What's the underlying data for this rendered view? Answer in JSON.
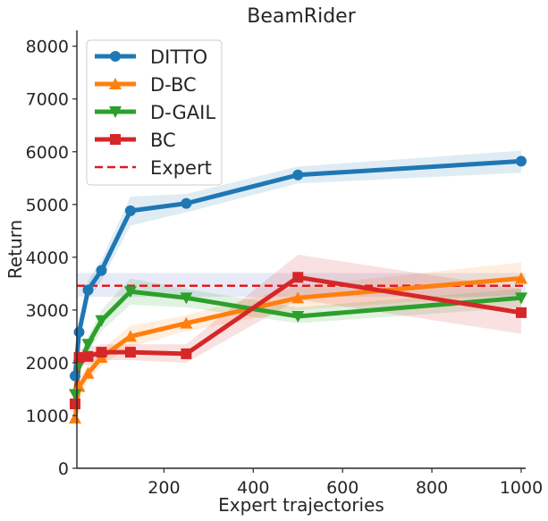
{
  "chart_data": {
    "type": "line",
    "title": "BeamRider",
    "xlabel": "Expert trajectories",
    "ylabel": "Return",
    "xlim": [
      5,
      1010
    ],
    "ylim": [
      0,
      8300
    ],
    "xticks": [
      200,
      400,
      600,
      800,
      1000
    ],
    "yticks": [
      0,
      1000,
      2000,
      3000,
      4000,
      5000,
      6000,
      7000,
      8000
    ],
    "legend_position": "top-left",
    "x": [
      1,
      10,
      30,
      60,
      125,
      250,
      500,
      1000
    ],
    "series": [
      {
        "name": "DITTO",
        "color": "#1f77b4",
        "marker": "circle",
        "values": [
          1750,
          2580,
          3380,
          3750,
          4880,
          5020,
          5560,
          5820
        ],
        "lower": [
          1550,
          2400,
          3200,
          3550,
          4600,
          4850,
          5400,
          5600
        ],
        "upper": [
          1950,
          2750,
          3550,
          3950,
          5150,
          5200,
          5720,
          6020
        ]
      },
      {
        "name": "D-BC",
        "color": "#ff7f0e",
        "marker": "triangle-up",
        "values": [
          950,
          1550,
          1800,
          2100,
          2500,
          2750,
          3230,
          3600
        ],
        "lower": [
          850,
          1400,
          1650,
          1950,
          2300,
          2600,
          3000,
          3300
        ],
        "upper": [
          1050,
          1700,
          1950,
          2250,
          2700,
          2900,
          3450,
          3900
        ]
      },
      {
        "name": "D-GAIL",
        "color": "#2ca02c",
        "marker": "triangle-down",
        "values": [
          1400,
          1950,
          2350,
          2800,
          3350,
          3230,
          2880,
          3230
        ],
        "lower": [
          1250,
          1800,
          2200,
          2600,
          3100,
          3050,
          2750,
          3050
        ],
        "upper": [
          1550,
          2100,
          2500,
          3000,
          3600,
          3400,
          3050,
          3400
        ]
      },
      {
        "name": "BC",
        "color": "#d62728",
        "marker": "square",
        "values": [
          1220,
          2100,
          2120,
          2200,
          2200,
          2170,
          3620,
          2950
        ],
        "lower": [
          1050,
          1950,
          1950,
          2050,
          2050,
          2000,
          3200,
          2550
        ],
        "upper": [
          1400,
          2250,
          2300,
          2350,
          2350,
          2350,
          4050,
          3400
        ]
      }
    ],
    "reference_lines": [
      {
        "name": "Expert",
        "color": "#e31a1c",
        "style": "dashed",
        "y": 3460,
        "lower": 3250,
        "upper": 3700
      }
    ]
  }
}
